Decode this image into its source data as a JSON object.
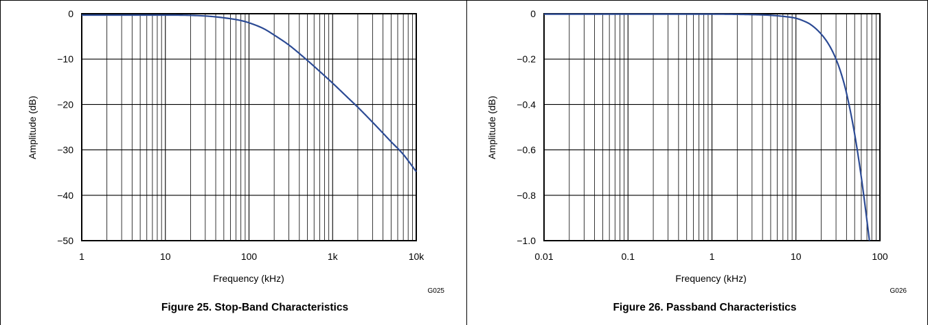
{
  "chart_data": [
    {
      "type": "line",
      "title": "Figure 25. Stop-Band Characteristics",
      "xlabel": "Frequency (kHz)",
      "ylabel": "Amplitude (dB)",
      "x_scale": "log",
      "xlim": [
        1,
        10000
      ],
      "ylim": [
        -50,
        0
      ],
      "grid": true,
      "x_ticks": [
        1,
        10,
        100,
        1000,
        10000
      ],
      "x_tick_labels": [
        "1",
        "10",
        "100",
        "1k",
        "10k"
      ],
      "y_ticks": [
        0,
        -10,
        -20,
        -30,
        -40,
        -50
      ],
      "y_tick_labels": [
        "0",
        "−10",
        "−20",
        "−30",
        "−40",
        "−50"
      ],
      "figure_code": "G025",
      "line_color": "#2b4a94",
      "series": [
        {
          "x": [
            1,
            10,
            30,
            50,
            80,
            100,
            150,
            200,
            300,
            500,
            700,
            1000,
            1500,
            2000,
            3000,
            5000,
            7000,
            10000
          ],
          "y": [
            -0.3,
            -0.3,
            -0.5,
            -0.9,
            -1.5,
            -2.0,
            -3.3,
            -4.7,
            -6.9,
            -10.3,
            -12.7,
            -15.3,
            -18.4,
            -20.6,
            -23.9,
            -28.2,
            -31.0,
            -34.8
          ]
        }
      ]
    },
    {
      "type": "line",
      "title": "Figure 26. Passband Characteristics",
      "xlabel": "Frequency (kHz)",
      "ylabel": "Amplitude (dB)",
      "x_scale": "log",
      "xlim": [
        0.01,
        100
      ],
      "ylim": [
        -1.0,
        0
      ],
      "grid": true,
      "x_ticks": [
        0.01,
        0.1,
        1,
        10,
        100
      ],
      "x_tick_labels": [
        "0.01",
        "0.1",
        "1",
        "10",
        "100"
      ],
      "y_ticks": [
        0,
        -0.2,
        -0.4,
        -0.6,
        -0.8,
        -1.0
      ],
      "y_tick_labels": [
        "0",
        "−0.2",
        "−0.4",
        "−0.6",
        "−0.8",
        "−1.0"
      ],
      "figure_code": "G026",
      "line_color": "#2b4a94",
      "series": [
        {
          "x": [
            0.01,
            0.1,
            1,
            3,
            5,
            8,
            10,
            12,
            15,
            20,
            25,
            30,
            35,
            40,
            50,
            60,
            70,
            75
          ],
          "y": [
            -0.002,
            -0.002,
            -0.002,
            -0.004,
            -0.007,
            -0.014,
            -0.02,
            -0.03,
            -0.048,
            -0.09,
            -0.14,
            -0.2,
            -0.27,
            -0.35,
            -0.53,
            -0.72,
            -0.91,
            -1.0
          ]
        }
      ]
    }
  ]
}
